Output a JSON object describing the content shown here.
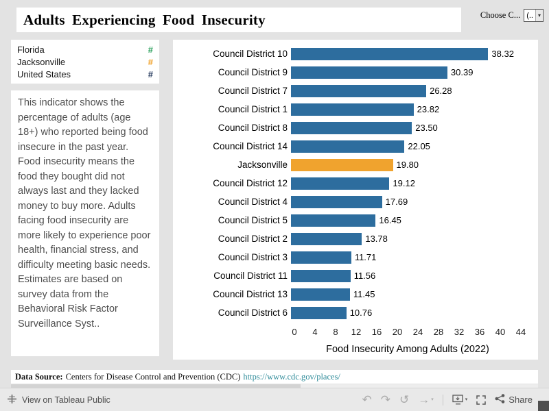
{
  "header": {
    "title": "Adults Experiencing Food Insecurity",
    "param_label": "Choose C...",
    "param_value": "(..",
    "caret": "▾"
  },
  "legend": {
    "items": [
      {
        "label": "Florida",
        "symbol": "#",
        "color": "#2ba05c"
      },
      {
        "label": "Jacksonville",
        "symbol": "#",
        "color": "#f0a32e"
      },
      {
        "label": "United States",
        "symbol": "#",
        "color": "#24385c"
      }
    ]
  },
  "description": {
    "text": "This indicator shows the percentage of adults (age 18+) who reported being food insecure in the past year. Food insecurity means the food they bought did not always last and they lacked money to buy more. Adults facing food insecurity are more likely to experience poor health, financial stress, and difficulty meeting basic needs. Estimates are based on survey data from the Behavioral Risk Factor Surveillance Syst.."
  },
  "chart_data": {
    "type": "bar",
    "orientation": "horizontal",
    "categories": [
      "Council District 10",
      "Council District 9",
      "Council District 7",
      "Council District 1",
      "Council District 8",
      "Council District 14",
      "Jacksonville",
      "Council District 12",
      "Council District 4",
      "Council District 5",
      "Council District 2",
      "Council District 3",
      "Council District 11",
      "Council District 13",
      "Council District 6"
    ],
    "values": [
      38.32,
      30.39,
      26.28,
      23.82,
      23.5,
      22.05,
      19.8,
      19.12,
      17.69,
      16.45,
      13.78,
      11.71,
      11.56,
      11.45,
      10.76
    ],
    "highlight_category": "Jacksonville",
    "bar_color": "#2d6d9e",
    "highlight_color": "#f0a32e",
    "xlabel": "Food Insecurity Among Adults (2022)",
    "x_ticks": [
      0,
      4,
      8,
      12,
      16,
      20,
      24,
      28,
      32,
      36,
      40,
      44
    ],
    "xlim": [
      0,
      44
    ],
    "grid": false,
    "legend_position": "none"
  },
  "data_source": {
    "label": "Data Source:",
    "text": "Centers for Disease Control and Prevention (CDC)",
    "link": "https://www.cdc.gov/places/"
  },
  "toolbar": {
    "view_label": "View on Tableau Public",
    "share_label": "Share"
  }
}
